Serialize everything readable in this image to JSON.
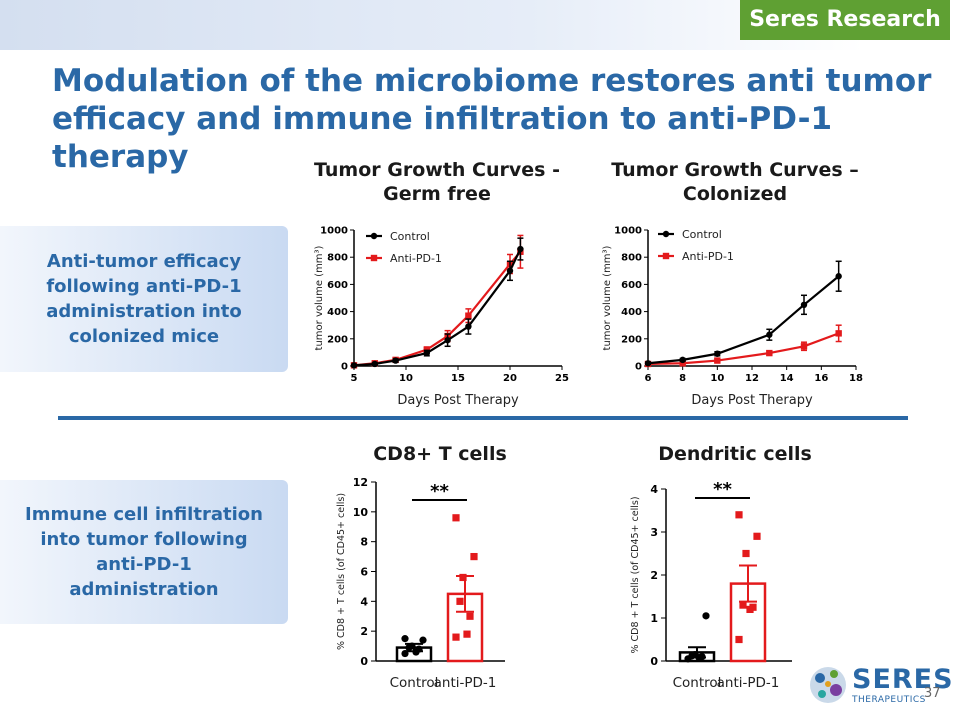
{
  "badge": "Seres Research",
  "title": "Modulation of the microbiome restores anti tumor efficacy and immune infiltration to anti-PD-1 therapy",
  "side_boxes": {
    "top": "Anti-tumor efficacy following anti-PD-1 administration into colonized mice",
    "bottom": "Immune cell infiltration into tumor following anti-PD-1 administration"
  },
  "logo": {
    "word": "SERES",
    "sub": "THERAPEUTICS"
  },
  "page_number": "37",
  "colors": {
    "control": "#000000",
    "treatment": "#e31a1c",
    "accent": "#2a68a6",
    "badge": "#5fa033"
  },
  "chart_data": [
    {
      "type": "line",
      "title": "Tumor Growth Curves - Germ free",
      "xlabel": "Days Post Therapy",
      "ylabel": "tumor volume (mm³)",
      "xlim": [
        5,
        25
      ],
      "ylim": [
        0,
        1000
      ],
      "xticks": [
        "5",
        "10",
        "15",
        "20",
        "25"
      ],
      "yticks": [
        "0",
        "200",
        "400",
        "600",
        "800",
        "1000"
      ],
      "legend": "top-left",
      "series": [
        {
          "name": "Control",
          "marker": "circle",
          "x": [
            5,
            7,
            9,
            12,
            14,
            16,
            20,
            21
          ],
          "y": [
            5,
            15,
            40,
            95,
            190,
            290,
            700,
            860
          ],
          "err": [
            5,
            10,
            12,
            20,
            45,
            55,
            70,
            80
          ]
        },
        {
          "name": "Anti-PD-1",
          "marker": "square",
          "x": [
            5,
            7,
            9,
            12,
            14,
            16,
            20,
            21
          ],
          "y": [
            5,
            20,
            45,
            120,
            220,
            370,
            750,
            840
          ],
          "err": [
            5,
            10,
            12,
            20,
            40,
            50,
            70,
            120
          ]
        }
      ]
    },
    {
      "type": "line",
      "title": "Tumor Growth Curves – Colonized",
      "xlabel": "Days Post Therapy",
      "ylabel": "tumor volume (mm³)",
      "xlim": [
        6,
        18
      ],
      "ylim": [
        0,
        1000
      ],
      "xticks": [
        "6",
        "8",
        "10",
        "12",
        "14",
        "16",
        "18"
      ],
      "yticks": [
        "0",
        "200",
        "400",
        "600",
        "800",
        "1000"
      ],
      "legend": "top-left",
      "series": [
        {
          "name": "Control",
          "marker": "circle",
          "x": [
            6,
            8,
            10,
            13,
            15,
            17
          ],
          "y": [
            20,
            45,
            90,
            230,
            450,
            660
          ],
          "err": [
            8,
            10,
            15,
            40,
            70,
            110
          ]
        },
        {
          "name": "Anti-PD-1",
          "marker": "square",
          "x": [
            6,
            8,
            10,
            13,
            15,
            17
          ],
          "y": [
            15,
            20,
            40,
            95,
            145,
            240
          ],
          "err": [
            5,
            6,
            10,
            15,
            30,
            60
          ]
        }
      ]
    },
    {
      "type": "bar",
      "title": "CD8+ T cells",
      "ylabel": "% CD8 + T cells (of CD45+ cells)",
      "ylim": [
        0,
        12
      ],
      "yticks": [
        "0",
        "2",
        "4",
        "6",
        "8",
        "10",
        "12"
      ],
      "categories": [
        "Control",
        "anti-PD-1"
      ],
      "values": [
        0.9,
        4.5
      ],
      "err": [
        0.25,
        1.2
      ],
      "points": [
        [
          0.5,
          0.6,
          0.8,
          0.9,
          1.0,
          1.4,
          1.5
        ],
        [
          1.6,
          1.8,
          3.0,
          4.0,
          5.6,
          7.0,
          9.6
        ]
      ],
      "significance": "**"
    },
    {
      "type": "bar",
      "title": "Dendritic cells",
      "ylabel": "% CD8 + T cells (of CD45+ cells)",
      "ylim": [
        0,
        4
      ],
      "yticks": [
        "0",
        "1",
        "2",
        "3",
        "4"
      ],
      "categories": [
        "Control",
        "anti-PD-1"
      ],
      "values": [
        0.2,
        1.8
      ],
      "err": [
        0.12,
        0.42
      ],
      "points": [
        [
          0.05,
          0.08,
          0.1,
          0.12,
          0.15,
          1.05
        ],
        [
          0.5,
          1.2,
          1.25,
          1.3,
          2.5,
          2.9,
          3.4
        ]
      ],
      "significance": "**"
    }
  ]
}
